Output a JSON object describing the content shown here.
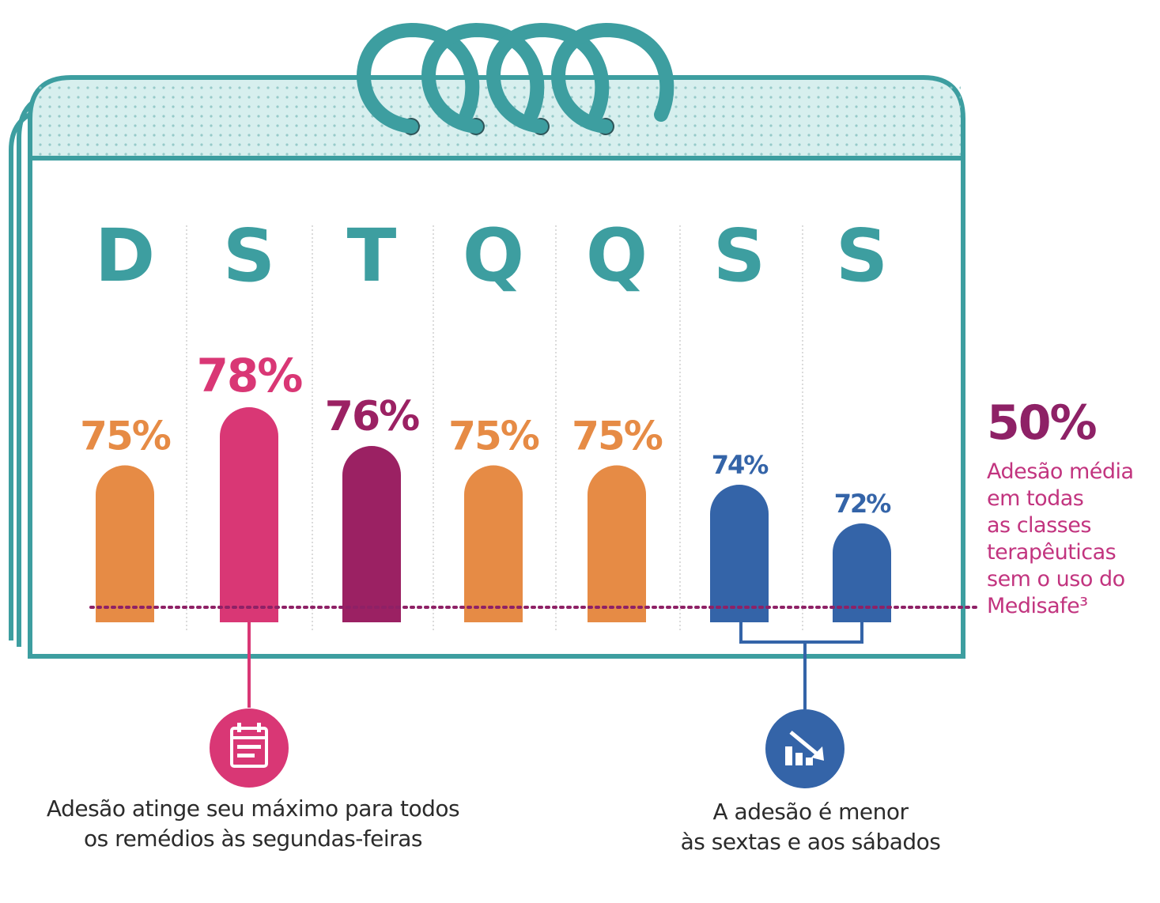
{
  "chart_data": {
    "type": "bar",
    "categories": [
      "D",
      "S",
      "T",
      "Q",
      "Q",
      "S",
      "S"
    ],
    "values": [
      75,
      78,
      76,
      75,
      75,
      74,
      72
    ],
    "value_labels": [
      "75%",
      "78%",
      "76%",
      "75%",
      "75%",
      "74%",
      "72%"
    ],
    "bar_colors": [
      "#e68b45",
      "#d93775",
      "#9b2163",
      "#e68b45",
      "#e68b45",
      "#3464a8",
      "#3464a8"
    ],
    "reference_line": {
      "value_label": "50%",
      "description_lines": [
        "Adesão média",
        "em todas",
        "as classes",
        "terapêuticas",
        "sem o uso do",
        "Medisafe³"
      ],
      "color": "#8e2166"
    }
  },
  "annotations": {
    "monday": {
      "icon": "calendar-icon",
      "color": "#d93775",
      "lines": [
        "Adesão atinge seu máximo para todos",
        "os remédios às segundas-feiras"
      ]
    },
    "weekend": {
      "icon": "trend-down-icon",
      "color": "#3464a8",
      "lines": [
        "A adesão é menor",
        "às sextas e aos sábados"
      ]
    }
  },
  "colors": {
    "calendar_outline": "#3d9ea0",
    "calendar_header_fill": "#d7efee",
    "day_letters": "#3d9ea0",
    "divider": "#cfcfcf"
  }
}
